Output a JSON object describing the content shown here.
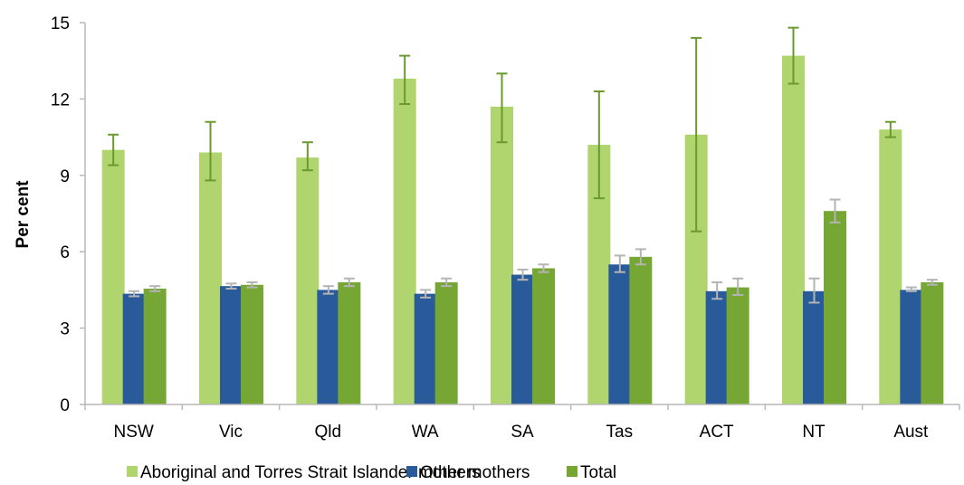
{
  "chart_data": {
    "type": "bar",
    "ylabel": "Per cent",
    "xlabel": "",
    "ylim": [
      0,
      15
    ],
    "yticks": [
      0,
      3,
      6,
      9,
      12,
      15
    ],
    "grid": false,
    "legend_position": "bottom",
    "categories": [
      "NSW",
      "Vic",
      "Qld",
      "WA",
      "SA",
      "Tas",
      "ACT",
      "NT",
      "Aust"
    ],
    "series": [
      {
        "name": "Aboriginal and Torres Strait Islander mothers",
        "color": "#b0d46e",
        "error_color": "#6a9a2e",
        "values": [
          10.0,
          9.9,
          9.7,
          12.8,
          11.7,
          10.2,
          10.6,
          13.7,
          10.8
        ],
        "error_low": [
          9.4,
          8.8,
          9.2,
          11.8,
          10.3,
          8.1,
          6.8,
          12.6,
          10.5
        ],
        "error_high": [
          10.6,
          11.1,
          10.3,
          13.7,
          13.0,
          12.3,
          14.4,
          14.8,
          11.1
        ]
      },
      {
        "name": "Other mothers",
        "color": "#295b9b",
        "error_color": "#b4b4b4",
        "values": [
          4.35,
          4.65,
          4.5,
          4.35,
          5.1,
          5.5,
          4.45,
          4.45,
          4.5
        ],
        "error_low": [
          4.25,
          4.55,
          4.35,
          4.2,
          4.9,
          5.2,
          4.15,
          4.0,
          4.45
        ],
        "error_high": [
          4.45,
          4.75,
          4.65,
          4.5,
          5.3,
          5.85,
          4.8,
          4.95,
          4.6
        ]
      },
      {
        "name": "Total",
        "color": "#76a634",
        "error_color": "#b4b4b4",
        "values": [
          4.55,
          4.7,
          4.8,
          4.8,
          5.35,
          5.8,
          4.6,
          7.6,
          4.8
        ],
        "error_low": [
          4.45,
          4.6,
          4.65,
          4.65,
          5.2,
          5.5,
          4.3,
          7.15,
          4.7
        ],
        "error_high": [
          4.65,
          4.8,
          4.95,
          4.95,
          5.5,
          6.1,
          4.95,
          8.05,
          4.9
        ]
      }
    ]
  }
}
